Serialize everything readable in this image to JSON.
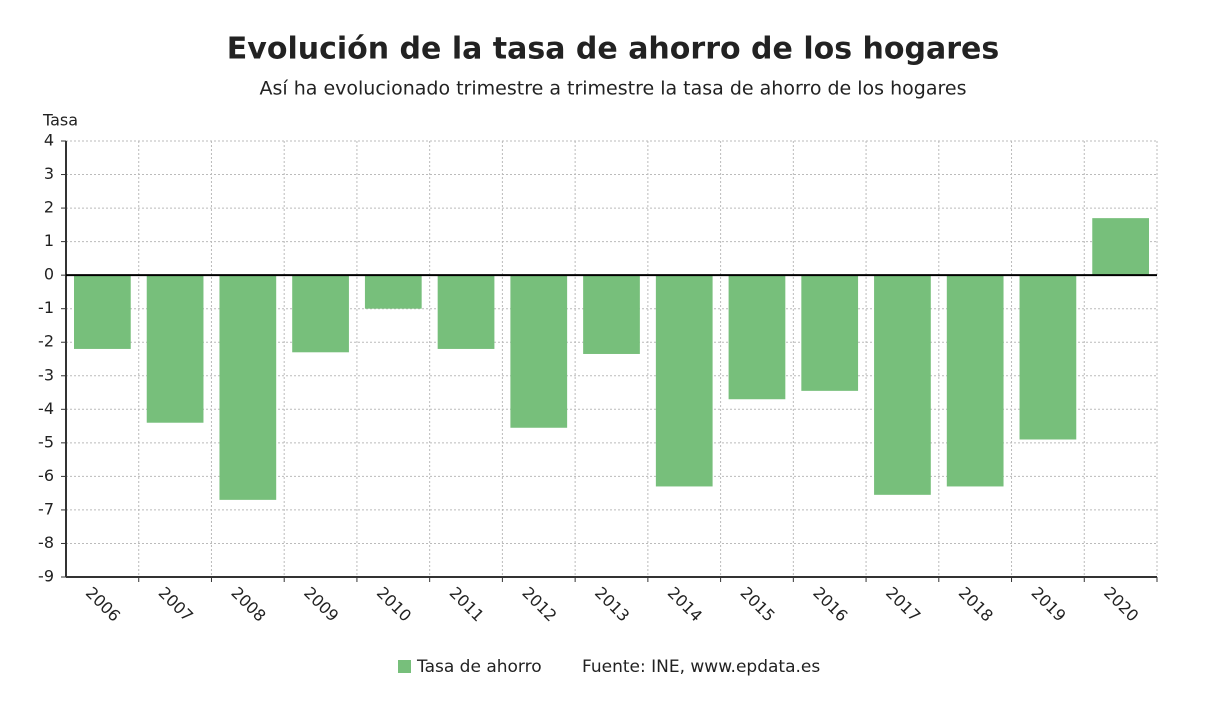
{
  "chart_data": {
    "type": "bar",
    "title": "Evolución de la tasa de ahorro de los hogares",
    "subtitle": "Así ha evolucionado trimestre a trimestre la tasa de ahorro de los hogares",
    "y_label": "Tasa",
    "categories": [
      "2006",
      "2007",
      "2008",
      "2009",
      "2010",
      "2011",
      "2012",
      "2013",
      "2014",
      "2015",
      "2016",
      "2017",
      "2018",
      "2019",
      "2020"
    ],
    "series": [
      {
        "name": "Tasa de ahorro",
        "color": "#77bf7b",
        "values": [
          -2.2,
          -4.4,
          -6.7,
          -2.3,
          -1.0,
          -2.2,
          -4.55,
          -2.35,
          -6.3,
          -3.7,
          -3.45,
          -6.55,
          -6.3,
          -4.9,
          1.7
        ]
      }
    ],
    "source": "Fuente: INE, www.epdata.es",
    "ylim": [
      -9,
      4
    ],
    "yticks": [
      -9,
      -8,
      -7,
      -6,
      -5,
      -4,
      -3,
      -2,
      -1,
      0,
      1,
      2,
      3,
      4
    ],
    "grid": true
  }
}
